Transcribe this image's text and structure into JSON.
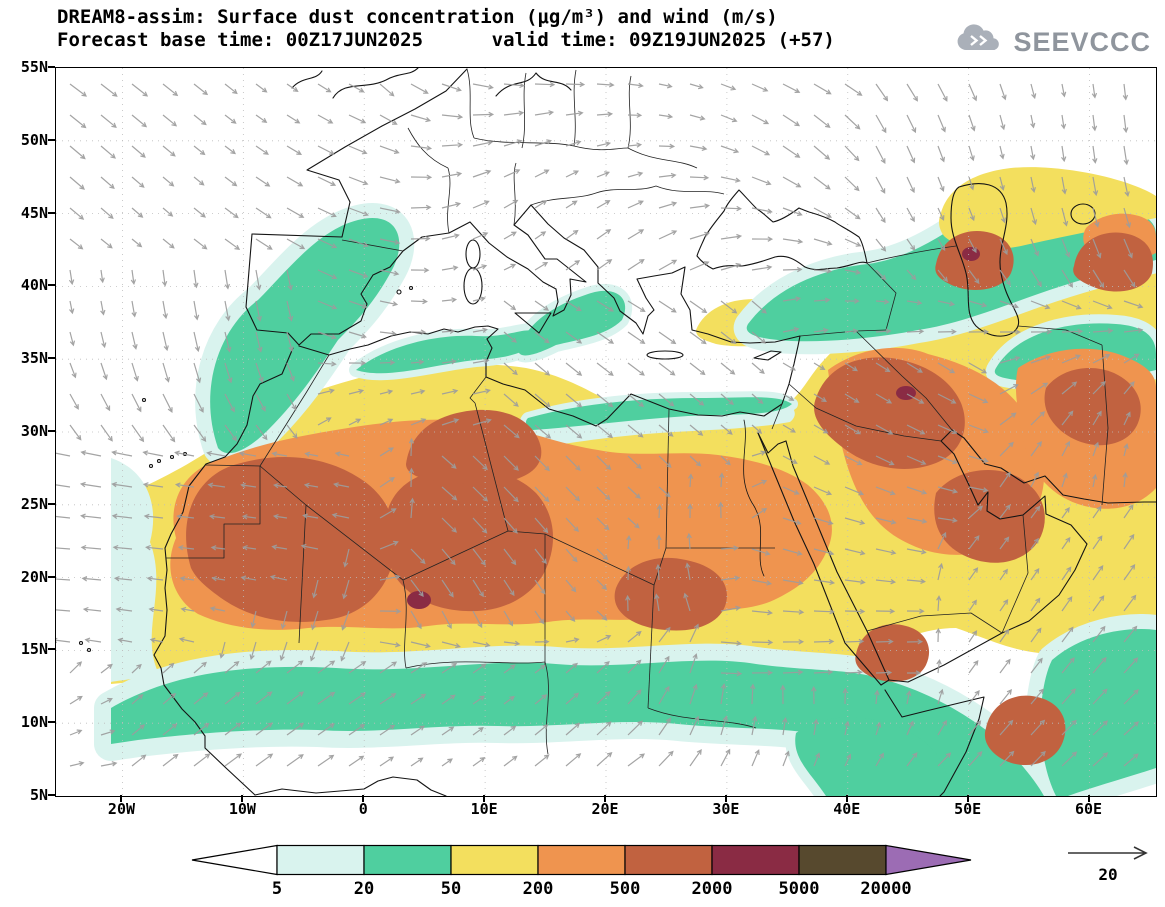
{
  "header": {
    "line1": "DREAM8-assim: Surface dust concentration (μg/m³) and wind (m/s)",
    "line2": "Forecast base time: 00Z17JUN2025      valid time: 09Z19JUN2025 (+57)"
  },
  "logo": {
    "text": "SEEVCCC"
  },
  "chart_data": {
    "type": "heatmap",
    "title": "Surface dust concentration (μg/m³) and wind (m/s)",
    "model": "DREAM8-assim",
    "forecast_base_time": "00Z17JUN2025",
    "valid_time": "09Z19JUN2025",
    "forecast_offset_hours": 57,
    "region": {
      "lon_range": [
        "25W",
        "65E"
      ],
      "lat_range": [
        "5N",
        "55N"
      ]
    },
    "x_axis": {
      "ticks": [
        "20W",
        "10W",
        "0",
        "10E",
        "20E",
        "30E",
        "40E",
        "50E",
        "60E"
      ],
      "tick_lons": [
        -20,
        -10,
        0,
        10,
        20,
        30,
        40,
        50,
        60
      ]
    },
    "y_axis": {
      "ticks": [
        "55N",
        "50N",
        "45N",
        "40N",
        "35N",
        "30N",
        "25N",
        "20N",
        "15N",
        "10N",
        "5N"
      ],
      "tick_lats": [
        55,
        50,
        45,
        40,
        35,
        30,
        25,
        20,
        15,
        10,
        5
      ]
    },
    "gridlines": "dotted",
    "colorbar": {
      "position": "bottom",
      "units": "μg/m³",
      "levels": [
        5,
        20,
        50,
        200,
        500,
        2000,
        5000,
        20000
      ],
      "labels": [
        "5",
        "20",
        "50",
        "200",
        "500",
        "2000",
        "5000",
        "20000"
      ],
      "colors": [
        "#ffffff",
        "#d9f3ee",
        "#4fcf9f",
        "#f3df5e",
        "#ef944f",
        "#c16240",
        "#8a2b44",
        "#57492e",
        "#9c6cb4"
      ]
    },
    "wind": {
      "reference_value": 20,
      "units": "m/s",
      "arrow_color": "#9c9c9c"
    }
  }
}
